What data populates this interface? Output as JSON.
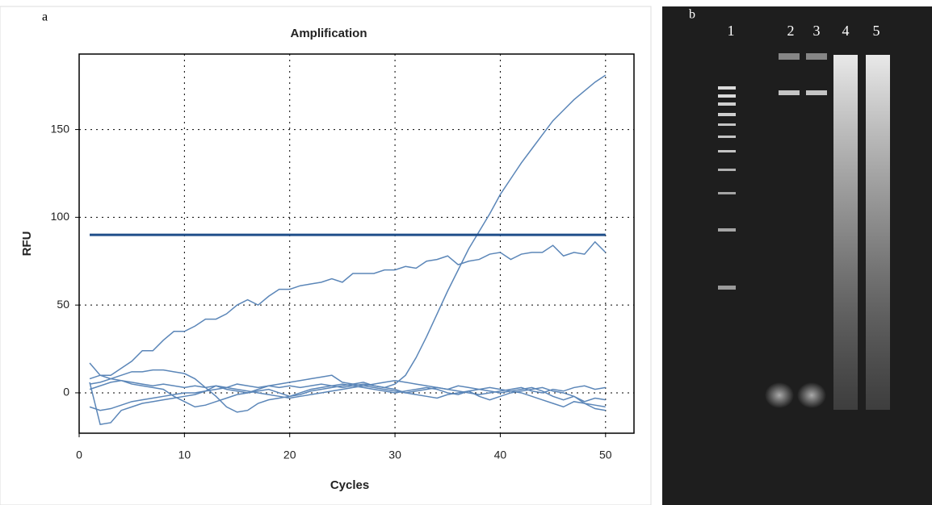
{
  "panel_a_label": "a",
  "panel_b_label": "b",
  "gel_lane_labels": [
    "1",
    "2",
    "3",
    "4",
    "5"
  ],
  "chart_data": {
    "type": "line",
    "title": "Amplification",
    "x_label": "Cycles",
    "y_label": "RFU",
    "x": [
      1,
      2,
      3,
      4,
      5,
      6,
      7,
      8,
      9,
      10,
      11,
      12,
      13,
      14,
      15,
      16,
      17,
      18,
      19,
      20,
      21,
      22,
      23,
      24,
      25,
      26,
      27,
      28,
      29,
      30,
      31,
      32,
      33,
      34,
      35,
      36,
      37,
      38,
      39,
      40,
      41,
      42,
      43,
      44,
      45,
      46,
      47,
      48,
      49,
      50
    ],
    "series": [
      {
        "color": "#5b86b8",
        "values": [
          17,
          10,
          8,
          7,
          6,
          5,
          4,
          5,
          4,
          3,
          4,
          3,
          4,
          3,
          5,
          4,
          3,
          4,
          3,
          4,
          3,
          4,
          5,
          4,
          3,
          4,
          5,
          4,
          3,
          5,
          10,
          20,
          32,
          45,
          58,
          70,
          82,
          92,
          102,
          113,
          122,
          131,
          139,
          147,
          155,
          161,
          167,
          172,
          177,
          181
        ]
      },
      {
        "color": "#5b86b8",
        "values": [
          8,
          10,
          10,
          14,
          18,
          24,
          24,
          30,
          35,
          35,
          38,
          42,
          42,
          45,
          50,
          53,
          50,
          55,
          59,
          59,
          61,
          62,
          63,
          65,
          63,
          68,
          68,
          68,
          70,
          70,
          72,
          71,
          75,
          76,
          78,
          73,
          75,
          76,
          79,
          80,
          76,
          79,
          80,
          80,
          84,
          78,
          80,
          79,
          86,
          80
        ]
      },
      {
        "color": "#5b86b8",
        "values": [
          5,
          6,
          8,
          10,
          12,
          12,
          13,
          13,
          12,
          11,
          8,
          3,
          -2,
          -8,
          -11,
          -10,
          -6,
          -4,
          -3,
          -2,
          0,
          2,
          3,
          4,
          5,
          4,
          3,
          2,
          1,
          0,
          1,
          2,
          3,
          2,
          0,
          -1,
          1,
          2,
          3,
          2,
          1,
          0,
          -2,
          -4,
          -6,
          -8,
          -5,
          -6,
          -7,
          -8
        ]
      },
      {
        "color": "#5b86b8",
        "values": [
          6,
          -18,
          -17,
          -10,
          -8,
          -6,
          -5,
          -4,
          -3,
          -2,
          -1,
          1,
          4,
          2,
          1,
          0,
          2,
          4,
          5,
          6,
          7,
          8,
          9,
          10,
          6,
          5,
          4,
          3,
          2,
          1,
          0,
          1,
          2,
          3,
          2,
          4,
          3,
          2,
          1,
          0,
          1,
          2,
          3,
          1,
          -2,
          -4,
          -2,
          -6,
          -9,
          -10
        ]
      },
      {
        "color": "#5b86b8",
        "values": [
          -8,
          -10,
          -9,
          -7,
          -5,
          -4,
          -3,
          -2,
          -1,
          0,
          0,
          1,
          2,
          3,
          2,
          1,
          0,
          -1,
          -2,
          -3,
          -2,
          -1,
          0,
          1,
          2,
          3,
          4,
          5,
          6,
          7,
          6,
          5,
          4,
          3,
          2,
          1,
          0,
          -1,
          0,
          1,
          2,
          3,
          1,
          0,
          2,
          1,
          3,
          4,
          2,
          3
        ]
      },
      {
        "color": "#5b86b8",
        "values": [
          2,
          4,
          6,
          7,
          5,
          4,
          3,
          2,
          -2,
          -5,
          -8,
          -7,
          -5,
          -3,
          -1,
          0,
          1,
          2,
          0,
          -2,
          -1,
          1,
          2,
          3,
          4,
          5,
          6,
          4,
          3,
          2,
          0,
          -1,
          -2,
          -3,
          -1,
          0,
          1,
          -2,
          -4,
          -2,
          0,
          1,
          2,
          3,
          1,
          0,
          -2,
          -5,
          -3,
          -4
        ]
      }
    ],
    "threshold": 90,
    "threshold_color": "#1f4e8a",
    "xlim": [
      0,
      52.7
    ],
    "ylim": [
      -23,
      193
    ],
    "xticks": [
      0,
      10,
      20,
      30,
      40,
      50
    ],
    "yticks": [
      0,
      50,
      100,
      150
    ],
    "grid": true
  }
}
